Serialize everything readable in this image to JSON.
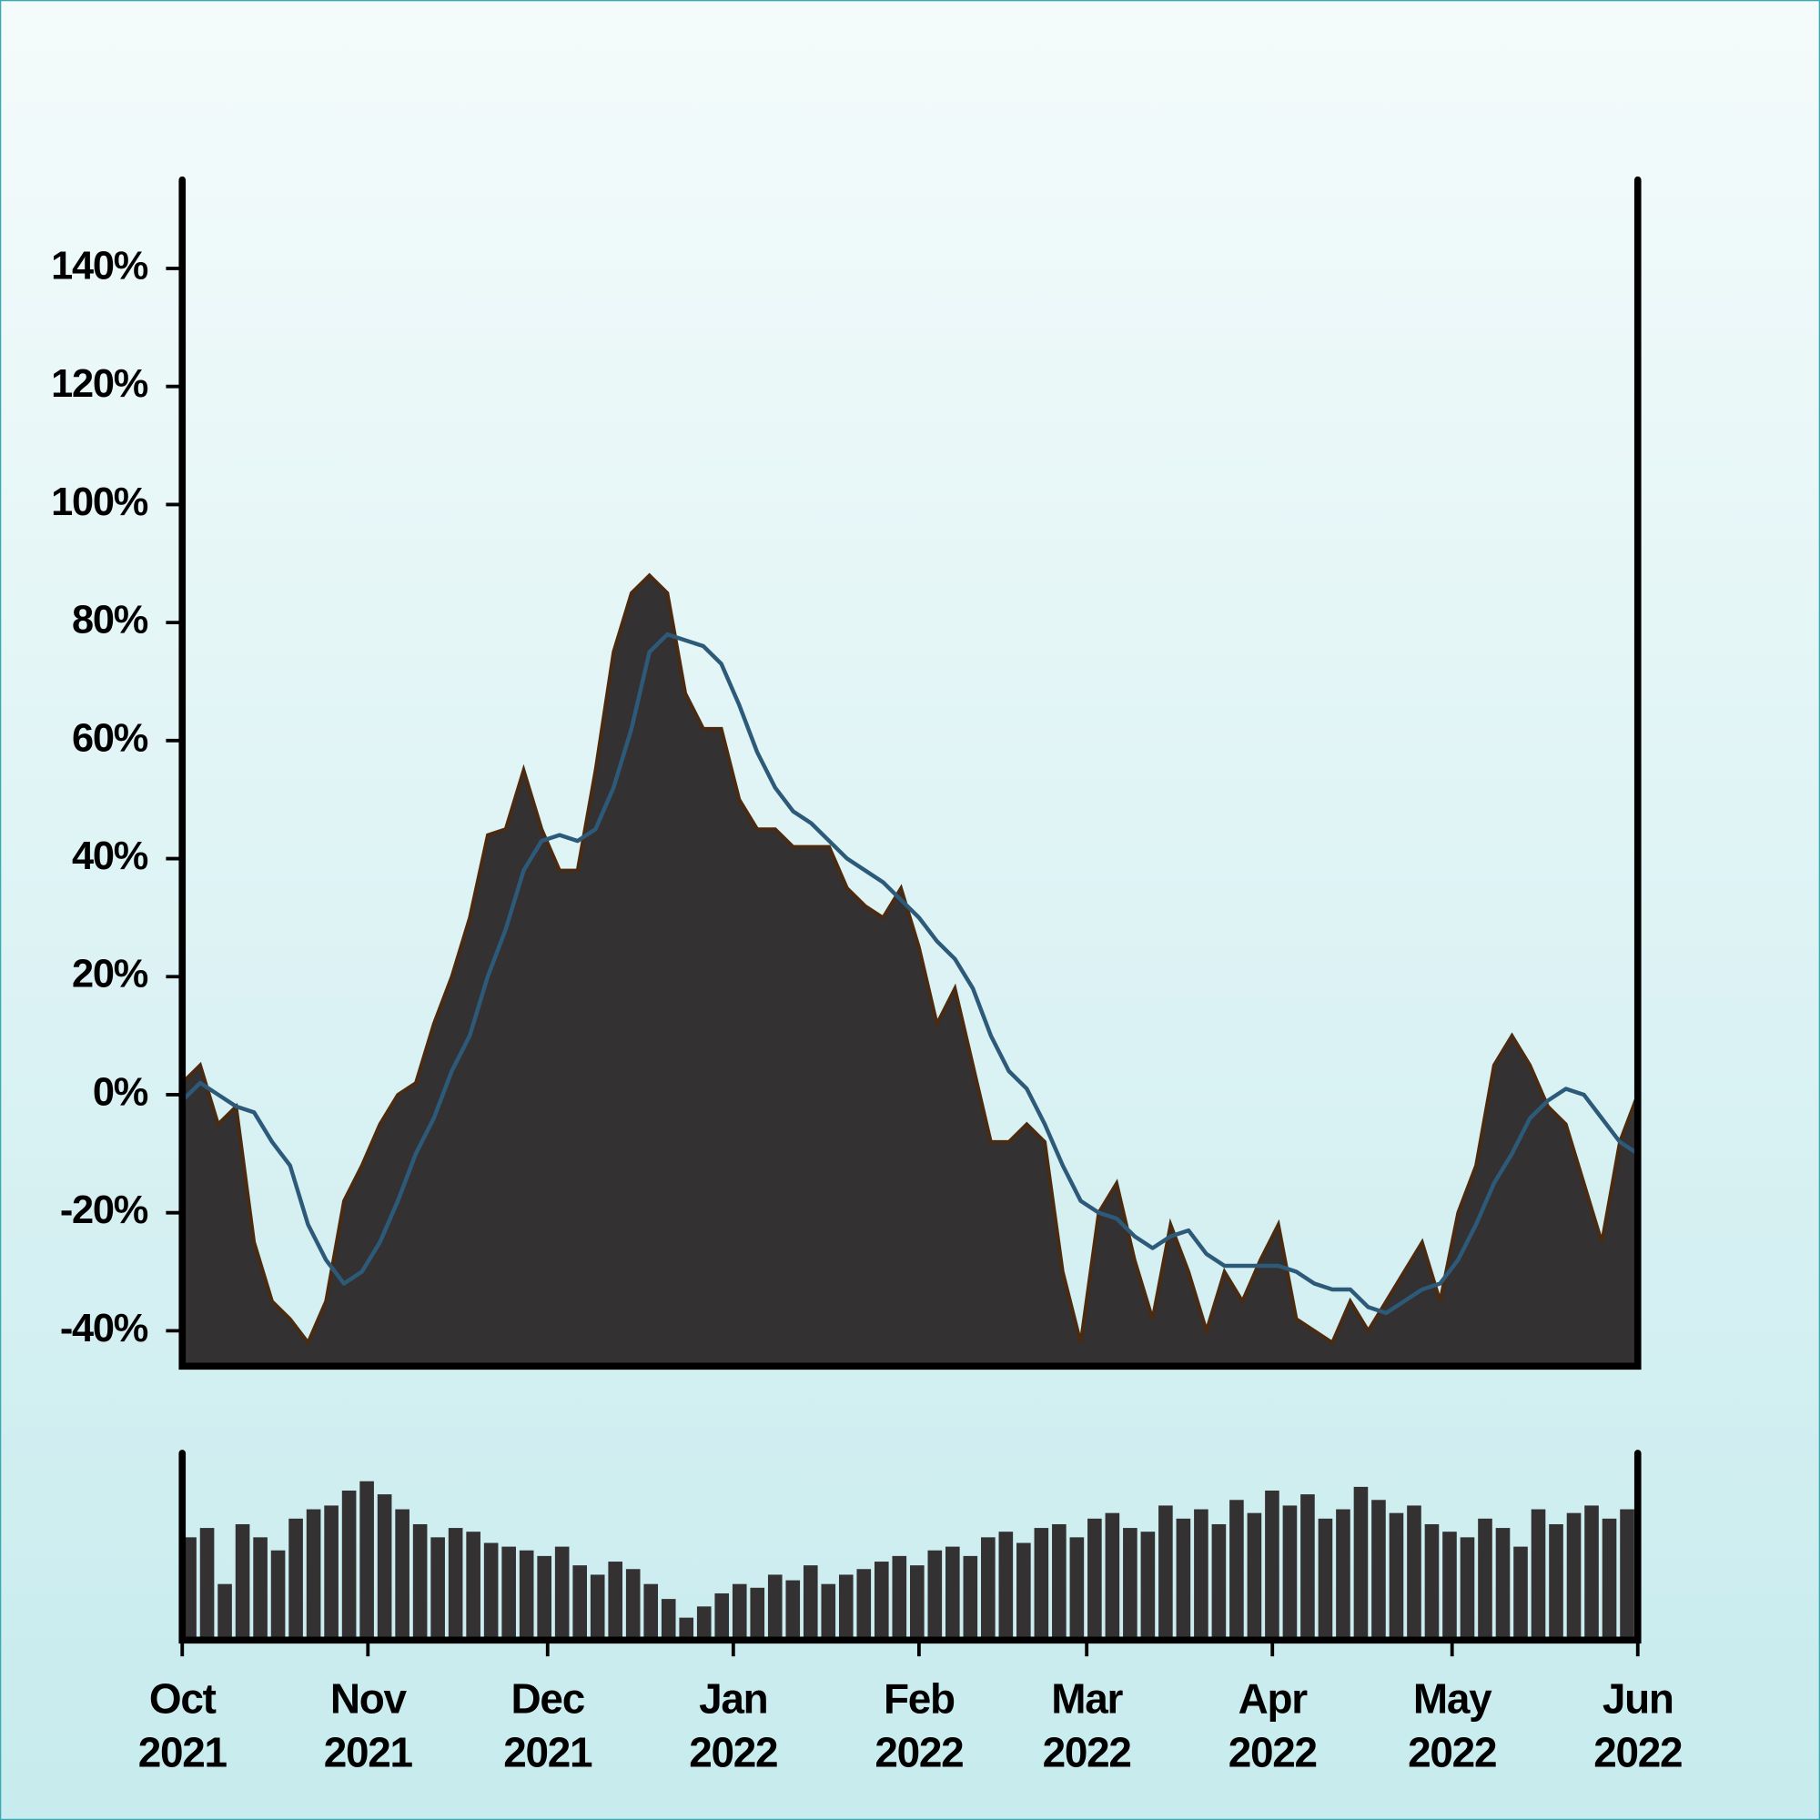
{
  "chart_data": [
    {
      "type": "area",
      "x": [
        0,
        3,
        6,
        9,
        12,
        15,
        18,
        21,
        24,
        27,
        30,
        33,
        36,
        39,
        42,
        45,
        48,
        51,
        54,
        57,
        60,
        63,
        66,
        69,
        72,
        75,
        78,
        81,
        84,
        87,
        90,
        93,
        96,
        99,
        102,
        105,
        108,
        111,
        114,
        117,
        120,
        123,
        126,
        129,
        132,
        135,
        138,
        141,
        144,
        147,
        150,
        153,
        156,
        159,
        162,
        165,
        168,
        171,
        174,
        177,
        180,
        183,
        186,
        189,
        192,
        195,
        198,
        201,
        204,
        207,
        210,
        213,
        216,
        219,
        222,
        225,
        228,
        231,
        234,
        237,
        240,
        243
      ],
      "xlim": [
        0,
        243
      ],
      "ylim": [
        -46,
        155
      ],
      "yticks": [
        {
          "value": -40,
          "label": "-40%"
        },
        {
          "value": -20,
          "label": "-20%"
        },
        {
          "value": 0,
          "label": "0%"
        },
        {
          "value": 20,
          "label": "20%"
        },
        {
          "value": 40,
          "label": "40%"
        },
        {
          "value": 60,
          "label": "60%"
        },
        {
          "value": 80,
          "label": "80%"
        },
        {
          "value": 100,
          "label": "100%"
        },
        {
          "value": 120,
          "label": "120%"
        },
        {
          "value": 140,
          "label": "140%"
        }
      ],
      "series": [
        {
          "type": "area",
          "color": "#333132",
          "edge_color": "#4a2a10",
          "values": [
            2,
            5,
            -5,
            -2,
            -25,
            -35,
            -38,
            -42,
            -35,
            -18,
            -12,
            -5,
            0,
            2,
            12,
            20,
            30,
            44,
            45,
            55,
            45,
            38,
            38,
            55,
            75,
            85,
            88,
            85,
            68,
            62,
            62,
            50,
            45,
            45,
            42,
            42,
            42,
            35,
            32,
            30,
            35,
            25,
            12,
            18,
            5,
            -8,
            -8,
            -5,
            -8,
            -30,
            -42,
            -20,
            -15,
            -28,
            -38,
            -22,
            -30,
            -40,
            -30,
            -35,
            -28,
            -22,
            -38,
            -40,
            -42,
            -35,
            -40,
            -35,
            -30,
            -25,
            -35,
            -20,
            -12,
            5,
            10,
            5,
            -2,
            -5,
            -15,
            -25,
            -8,
            0
          ]
        },
        {
          "type": "line",
          "color": "#2e5a7a",
          "values": [
            -1,
            2,
            0,
            -2,
            -3,
            -8,
            -12,
            -22,
            -28,
            -32,
            -30,
            -25,
            -18,
            -10,
            -4,
            4,
            10,
            20,
            28,
            38,
            43,
            44,
            43,
            45,
            52,
            62,
            75,
            78,
            77,
            76,
            73,
            66,
            58,
            52,
            48,
            46,
            43,
            40,
            38,
            36,
            33,
            30,
            26,
            23,
            18,
            10,
            4,
            1,
            -5,
            -12,
            -18,
            -20,
            -21,
            -24,
            -26,
            -24,
            -23,
            -27,
            -29,
            -29,
            -29,
            -29,
            -30,
            -32,
            -33,
            -33,
            -36,
            -37,
            -35,
            -33,
            -32,
            -28,
            -22,
            -15,
            -10,
            -4,
            -1,
            1,
            0,
            -4,
            -8,
            -10
          ]
        }
      ]
    },
    {
      "type": "bar",
      "color": "#333132",
      "ylim": [
        0,
        100
      ],
      "values": [
        55,
        60,
        30,
        62,
        55,
        48,
        65,
        70,
        72,
        80,
        85,
        78,
        70,
        62,
        55,
        60,
        58,
        52,
        50,
        48,
        45,
        50,
        40,
        35,
        42,
        38,
        30,
        22,
        12,
        18,
        25,
        30,
        28,
        35,
        32,
        40,
        30,
        35,
        38,
        42,
        45,
        40,
        48,
        50,
        45,
        55,
        58,
        52,
        60,
        62,
        55,
        65,
        68,
        60,
        58,
        72,
        65,
        70,
        62,
        75,
        68,
        80,
        72,
        78,
        65,
        70,
        82,
        75,
        68,
        72,
        62,
        58,
        55,
        65,
        60,
        50,
        70,
        62,
        68,
        72,
        65,
        70
      ],
      "xlim": [
        0,
        243
      ],
      "xticks": [
        {
          "value": 0,
          "label": "Oct 2021"
        },
        {
          "value": 31,
          "label": "Nov 2021"
        },
        {
          "value": 61,
          "label": "Dec 2021"
        },
        {
          "value": 92,
          "label": "Jan 2022"
        },
        {
          "value": 123,
          "label": "Feb 2022"
        },
        {
          "value": 151,
          "label": "Mar 2022"
        },
        {
          "value": 182,
          "label": "Apr 2022"
        },
        {
          "value": 212,
          "label": "May 2022"
        },
        {
          "value": 243,
          "label": "Jun 2022"
        }
      ]
    }
  ]
}
